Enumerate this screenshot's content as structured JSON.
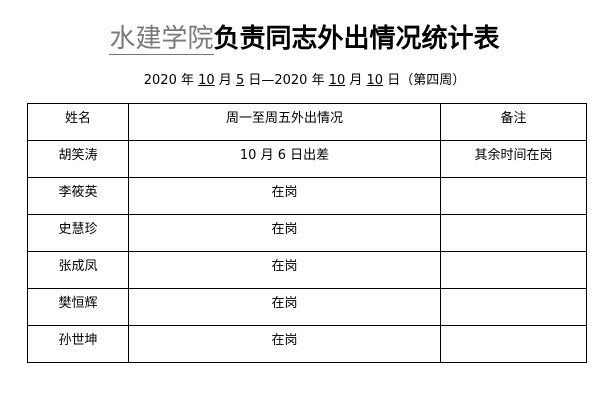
{
  "title": {
    "org": "水建学院",
    "rest": "负责同志外出情况统计表"
  },
  "date_line": {
    "y1": "2020",
    "m1": "10",
    "d1": "5",
    "y2": "2020",
    "m2": "10",
    "d2": "10",
    "week": "（第四周）",
    "t_year": " 年 ",
    "t_month": " 月 ",
    "t_day_dash": " 日—",
    "t_day": " 日"
  },
  "table": {
    "headers": [
      "姓名",
      "周一至周五外出情况",
      "备注"
    ],
    "rows": [
      [
        "胡笑涛",
        "10 月 6 日出差",
        "其余时间在岗"
      ],
      [
        "李筱英",
        "在岗",
        ""
      ],
      [
        "史慧珍",
        "在岗",
        ""
      ],
      [
        "张成凤",
        "在岗",
        ""
      ],
      [
        "樊恒辉",
        "在岗",
        ""
      ],
      [
        "孙世坤",
        "在岗",
        ""
      ]
    ]
  }
}
